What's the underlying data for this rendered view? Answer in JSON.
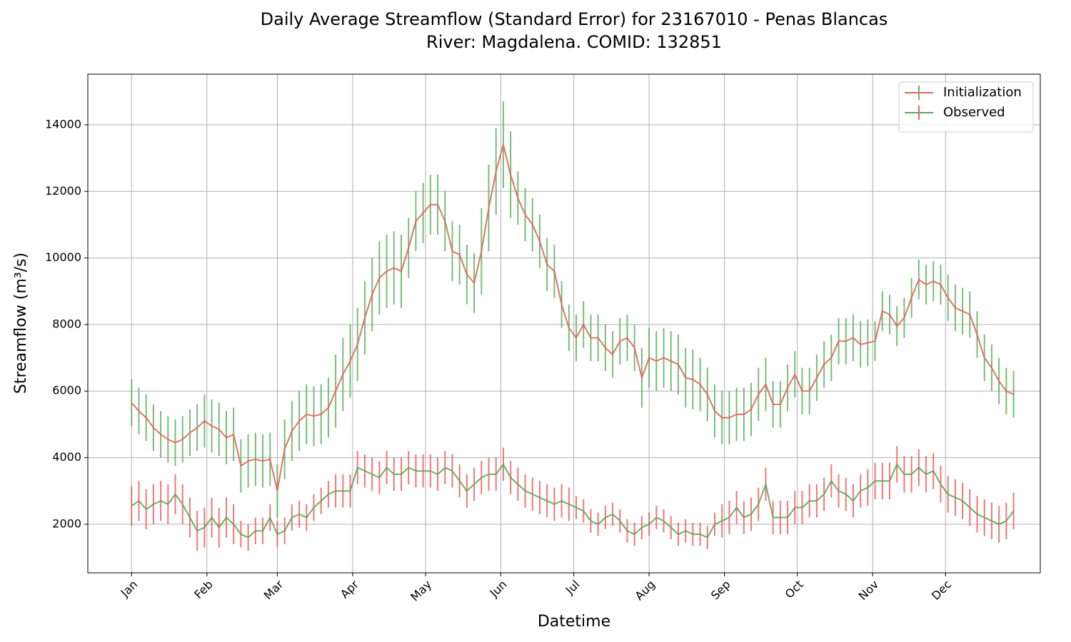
{
  "chart_data": {
    "type": "errorbar-line",
    "title": "Daily Average Streamflow (Standard Error) for 23167010 - Penas Blancas",
    "subtitle": "River: Magdalena. COMID: 132851",
    "x_label": "Datetime",
    "y_label": "Streamflow (m³/s)",
    "xlim": [
      -17,
      375
    ],
    "ylim": [
      540,
      15520
    ],
    "xticks": [
      {
        "value": 1,
        "label": "Jan"
      },
      {
        "value": 32,
        "label": "Feb"
      },
      {
        "value": 61,
        "label": "Mar"
      },
      {
        "value": 92,
        "label": "Apr"
      },
      {
        "value": 122,
        "label": "May"
      },
      {
        "value": 153,
        "label": "Jun"
      },
      {
        "value": 183,
        "label": "Jul"
      },
      {
        "value": 214,
        "label": "Aug"
      },
      {
        "value": 245,
        "label": "Sep"
      },
      {
        "value": 275,
        "label": "Oct"
      },
      {
        "value": 306,
        "label": "Nov"
      },
      {
        "value": 336,
        "label": "Dec"
      }
    ],
    "yticks": [
      2000,
      4000,
      6000,
      8000,
      10000,
      12000,
      14000
    ],
    "grid": true,
    "legend": "upper right",
    "x": [
      1,
      4,
      7,
      10,
      13,
      16,
      19,
      22,
      25,
      28,
      31,
      34,
      37,
      40,
      43,
      46,
      49,
      52,
      55,
      58,
      61,
      64,
      67,
      70,
      73,
      76,
      79,
      82,
      85,
      88,
      91,
      94,
      97,
      100,
      103,
      106,
      109,
      112,
      115,
      118,
      121,
      124,
      127,
      130,
      133,
      136,
      139,
      142,
      145,
      148,
      151,
      154,
      157,
      160,
      163,
      166,
      169,
      172,
      175,
      178,
      181,
      184,
      187,
      190,
      193,
      196,
      199,
      202,
      205,
      208,
      211,
      214,
      217,
      220,
      223,
      226,
      229,
      232,
      235,
      238,
      241,
      244,
      247,
      250,
      253,
      256,
      259,
      262,
      265,
      268,
      271,
      274,
      277,
      280,
      283,
      286,
      289,
      292,
      295,
      298,
      301,
      304,
      307,
      310,
      313,
      316,
      319,
      322,
      325,
      328,
      331,
      334,
      337,
      340,
      343,
      346,
      349,
      352,
      355,
      358,
      361,
      364
    ],
    "series": [
      {
        "name": "Initialization",
        "color": "#e0645a",
        "error_color": "#5fb35f",
        "values": [
          5650,
          5400,
          5200,
          4900,
          4700,
          4550,
          4450,
          4550,
          4750,
          4900,
          5100,
          4950,
          4850,
          4600,
          4700,
          3750,
          3900,
          3950,
          3900,
          3950,
          3000,
          4250,
          4800,
          5100,
          5300,
          5250,
          5300,
          5500,
          6000,
          6500,
          6900,
          7400,
          8200,
          8900,
          9400,
          9600,
          9700,
          9600,
          10300,
          11100,
          11350,
          11600,
          11600,
          11100,
          10200,
          10100,
          9500,
          9250,
          10200,
          11500,
          12600,
          13400,
          12500,
          11800,
          11300,
          11000,
          10500,
          9800,
          9600,
          8600,
          7900,
          7600,
          8000,
          7600,
          7600,
          7300,
          7100,
          7500,
          7600,
          7300,
          6400,
          7000,
          6900,
          7000,
          6900,
          6800,
          6400,
          6350,
          6200,
          5900,
          5400,
          5200,
          5200,
          5300,
          5300,
          5450,
          5900,
          6200,
          5600,
          5600,
          6100,
          6500,
          6000,
          6000,
          6400,
          6800,
          7000,
          7500,
          7500,
          7600,
          7400,
          7450,
          7500,
          8400,
          8300,
          7950,
          8200,
          8800,
          9350,
          9200,
          9300,
          9200,
          8800,
          8500,
          8400,
          8300,
          7700,
          7000,
          6700,
          6300,
          6000,
          5900
        ],
        "errors": [
          700,
          700,
          700,
          700,
          700,
          700,
          700,
          700,
          700,
          700,
          800,
          800,
          800,
          800,
          800,
          800,
          800,
          800,
          800,
          800,
          800,
          900,
          900,
          900,
          900,
          900,
          900,
          900,
          1100,
          1100,
          1100,
          1100,
          1100,
          1100,
          1100,
          1100,
          1100,
          1100,
          900,
          900,
          900,
          900,
          900,
          900,
          900,
          900,
          900,
          900,
          1300,
          1300,
          1300,
          1300,
          1300,
          800,
          800,
          800,
          800,
          800,
          800,
          700,
          700,
          700,
          700,
          700,
          700,
          700,
          700,
          700,
          700,
          700,
          900,
          900,
          900,
          900,
          900,
          900,
          900,
          900,
          800,
          800,
          800,
          800,
          800,
          800,
          800,
          800,
          800,
          800,
          700,
          700,
          700,
          700,
          700,
          700,
          700,
          700,
          700,
          700,
          700,
          700,
          700,
          700,
          600,
          600,
          600,
          600,
          600,
          600,
          600,
          600,
          600,
          600,
          700,
          700,
          700,
          700,
          700,
          700,
          700,
          700,
          700,
          700
        ]
      },
      {
        "name": "Observed",
        "color": "#5fa55a",
        "error_color": "#f05f5f",
        "values": [
          2550,
          2700,
          2450,
          2600,
          2700,
          2600,
          2900,
          2600,
          2200,
          1800,
          1900,
          2200,
          1900,
          2200,
          2000,
          1700,
          1600,
          1800,
          1800,
          2200,
          1700,
          1800,
          2200,
          2300,
          2200,
          2500,
          2700,
          2900,
          3000,
          3000,
          3000,
          3700,
          3600,
          3500,
          3400,
          3700,
          3500,
          3500,
          3700,
          3600,
          3600,
          3600,
          3500,
          3700,
          3600,
          3300,
          3000,
          3200,
          3400,
          3500,
          3500,
          3800,
          3400,
          3200,
          3000,
          2900,
          2800,
          2700,
          2600,
          2700,
          2600,
          2500,
          2400,
          2100,
          2000,
          2200,
          2300,
          2100,
          1800,
          1700,
          1900,
          2000,
          2200,
          2100,
          1900,
          1700,
          1800,
          1700,
          1700,
          1600,
          2000,
          2100,
          2200,
          2500,
          2200,
          2300,
          2600,
          3200,
          2200,
          2200,
          2200,
          2500,
          2500,
          2700,
          2700,
          2900,
          3300,
          3000,
          2900,
          2700,
          3000,
          3100,
          3300,
          3300,
          3300,
          3800,
          3500,
          3500,
          3700,
          3500,
          3600,
          3200,
          2900,
          2800,
          2700,
          2500,
          2300,
          2200,
          2100,
          2000,
          2100,
          2400
        ],
        "errors": [
          600,
          600,
          600,
          600,
          600,
          600,
          600,
          600,
          600,
          600,
          600,
          600,
          600,
          600,
          600,
          400,
          400,
          400,
          400,
          400,
          400,
          400,
          400,
          400,
          400,
          400,
          400,
          400,
          500,
          500,
          500,
          500,
          500,
          500,
          500,
          500,
          500,
          500,
          500,
          500,
          500,
          500,
          500,
          500,
          500,
          500,
          500,
          500,
          500,
          500,
          500,
          500,
          500,
          500,
          500,
          500,
          500,
          500,
          500,
          500,
          500,
          350,
          350,
          350,
          350,
          350,
          350,
          350,
          350,
          350,
          350,
          350,
          350,
          350,
          350,
          350,
          350,
          350,
          350,
          350,
          350,
          500,
          500,
          500,
          500,
          500,
          500,
          500,
          500,
          500,
          500,
          500,
          500,
          500,
          500,
          500,
          500,
          500,
          500,
          500,
          500,
          550,
          550,
          550,
          550,
          550,
          550,
          550,
          550,
          550,
          550,
          550,
          550,
          550,
          550,
          550,
          550,
          550,
          550,
          550,
          550,
          550
        ]
      }
    ]
  }
}
